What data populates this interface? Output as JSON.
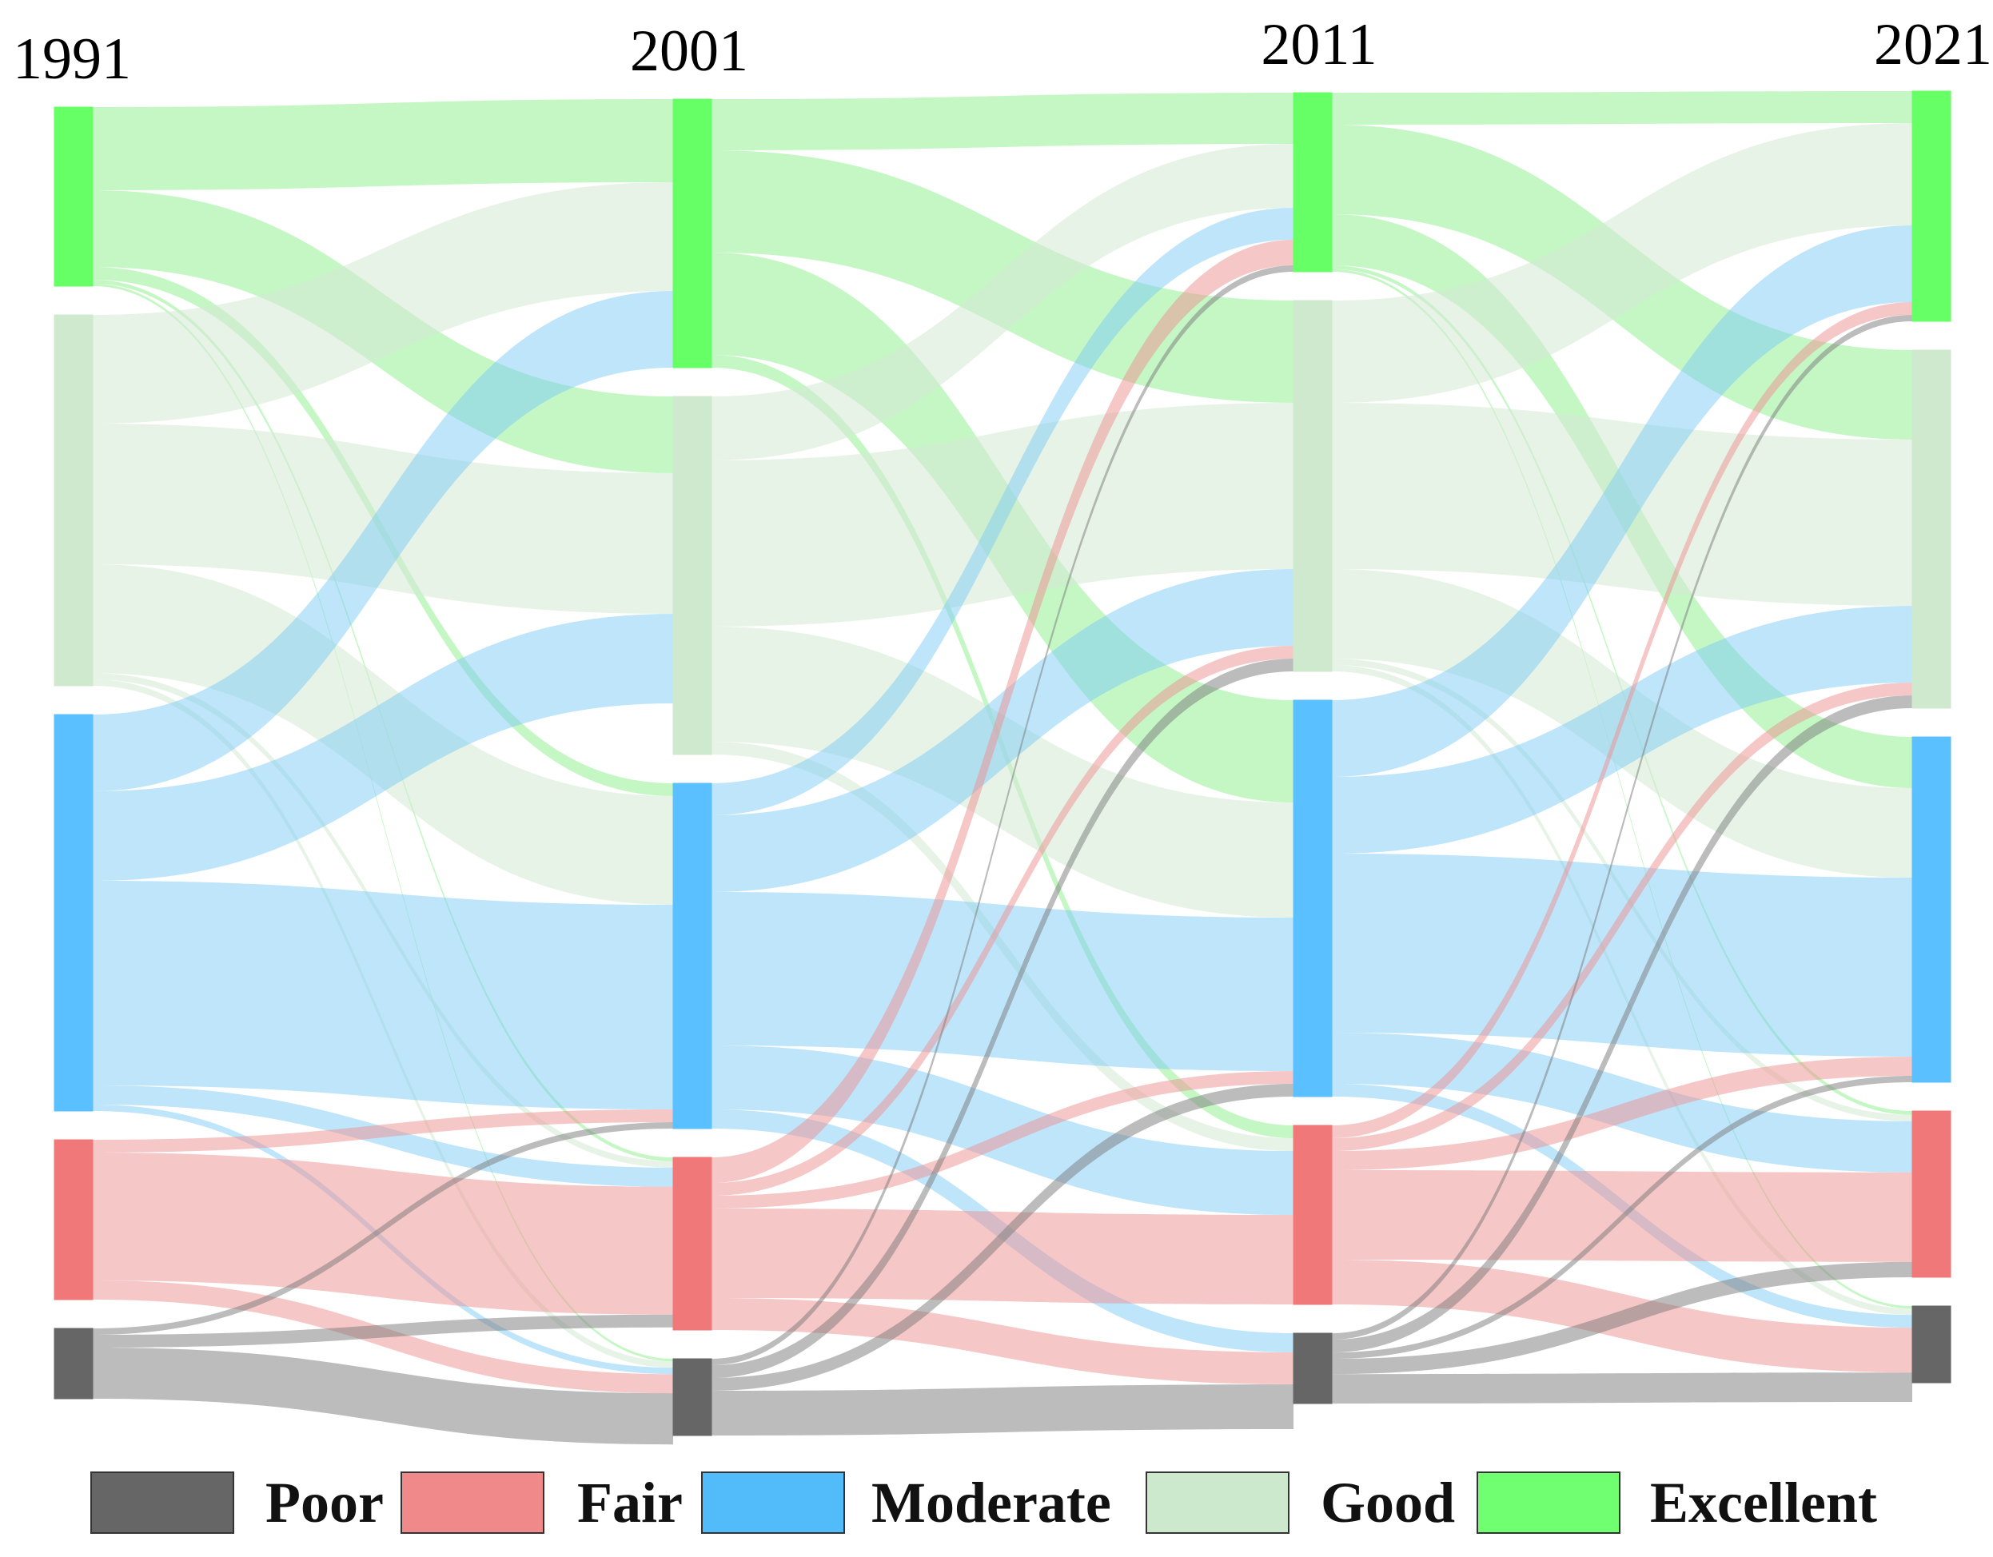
{
  "chart_data": {
    "type": "sankey",
    "title": "",
    "years": [
      "1991",
      "2001",
      "2011",
      "2021"
    ],
    "categories": [
      "Excellent",
      "Good",
      "Moderate",
      "Fair",
      "Poor"
    ],
    "colors": {
      "Excellent": {
        "node": "#66ff66",
        "link": "#8cf08c"
      },
      "Good": {
        "node": "#cfe9cf",
        "link": "#d3ead3"
      },
      "Moderate": {
        "node": "#5bc0ff",
        "link": "#7dccf6"
      },
      "Fair": {
        "node": "#f07878",
        "link": "#ee8f8f"
      },
      "Poor": {
        "node": "#666666",
        "link": "#7a7a7a"
      }
    },
    "nodes": [
      {
        "1991": 14.0,
        "2001": 21.0,
        "2011": 14.0,
        "2021": 18.0
      },
      {
        "1991": 29.0,
        "2001": 28.0,
        "2011": 29.0,
        "2021": 28.0
      },
      {
        "1991": 31.0,
        "2001": 27.0,
        "2011": 31.0,
        "2021": 27.0
      },
      {
        "1991": 12.5,
        "2001": 13.5,
        "2011": 14.0,
        "2021": 13.0
      },
      {
        "1991": 5.5,
        "2001": 6.0,
        "2011": 5.5,
        "2021": 6.0
      }
    ],
    "flows": [
      [
        [
          6.5,
          6.0,
          1.0,
          0.3,
          0.2
        ],
        [
          8.5,
          11.0,
          8.5,
          0.5,
          0.5
        ],
        [
          6.0,
          7.0,
          16.0,
          1.5,
          0.5
        ],
        [
          0.0,
          0.0,
          1.0,
          10.0,
          1.5
        ],
        [
          0.0,
          0.0,
          0.5,
          1.0,
          4.0
        ]
      ],
      [
        [
          4.0,
          8.0,
          8.0,
          1.0,
          0.0
        ],
        [
          5.0,
          13.0,
          9.0,
          1.0,
          0.0
        ],
        [
          2.5,
          6.0,
          12.0,
          5.0,
          1.5
        ],
        [
          2.0,
          1.0,
          1.0,
          7.0,
          2.5
        ],
        [
          0.5,
          1.0,
          1.0,
          0.0,
          3.5
        ]
      ],
      [
        [
          2.5,
          7.0,
          4.0,
          0.3,
          0.2
        ],
        [
          8.0,
          13.0,
          7.0,
          0.5,
          0.5
        ],
        [
          6.0,
          6.0,
          14.0,
          4.0,
          1.0
        ],
        [
          1.0,
          1.0,
          1.5,
          7.0,
          3.5
        ],
        [
          0.5,
          1.0,
          0.5,
          1.2,
          2.3
        ]
      ]
    ],
    "legend": {
      "items": [
        {
          "label": "Poor",
          "color": "#666666"
        },
        {
          "label": "Fair",
          "color": "#f08a8a"
        },
        {
          "label": "Moderate",
          "color": "#52bcfb"
        },
        {
          "label": "Good",
          "color": "#cde9cd"
        },
        {
          "label": "Excellent",
          "color": "#70ff70"
        }
      ]
    }
  }
}
